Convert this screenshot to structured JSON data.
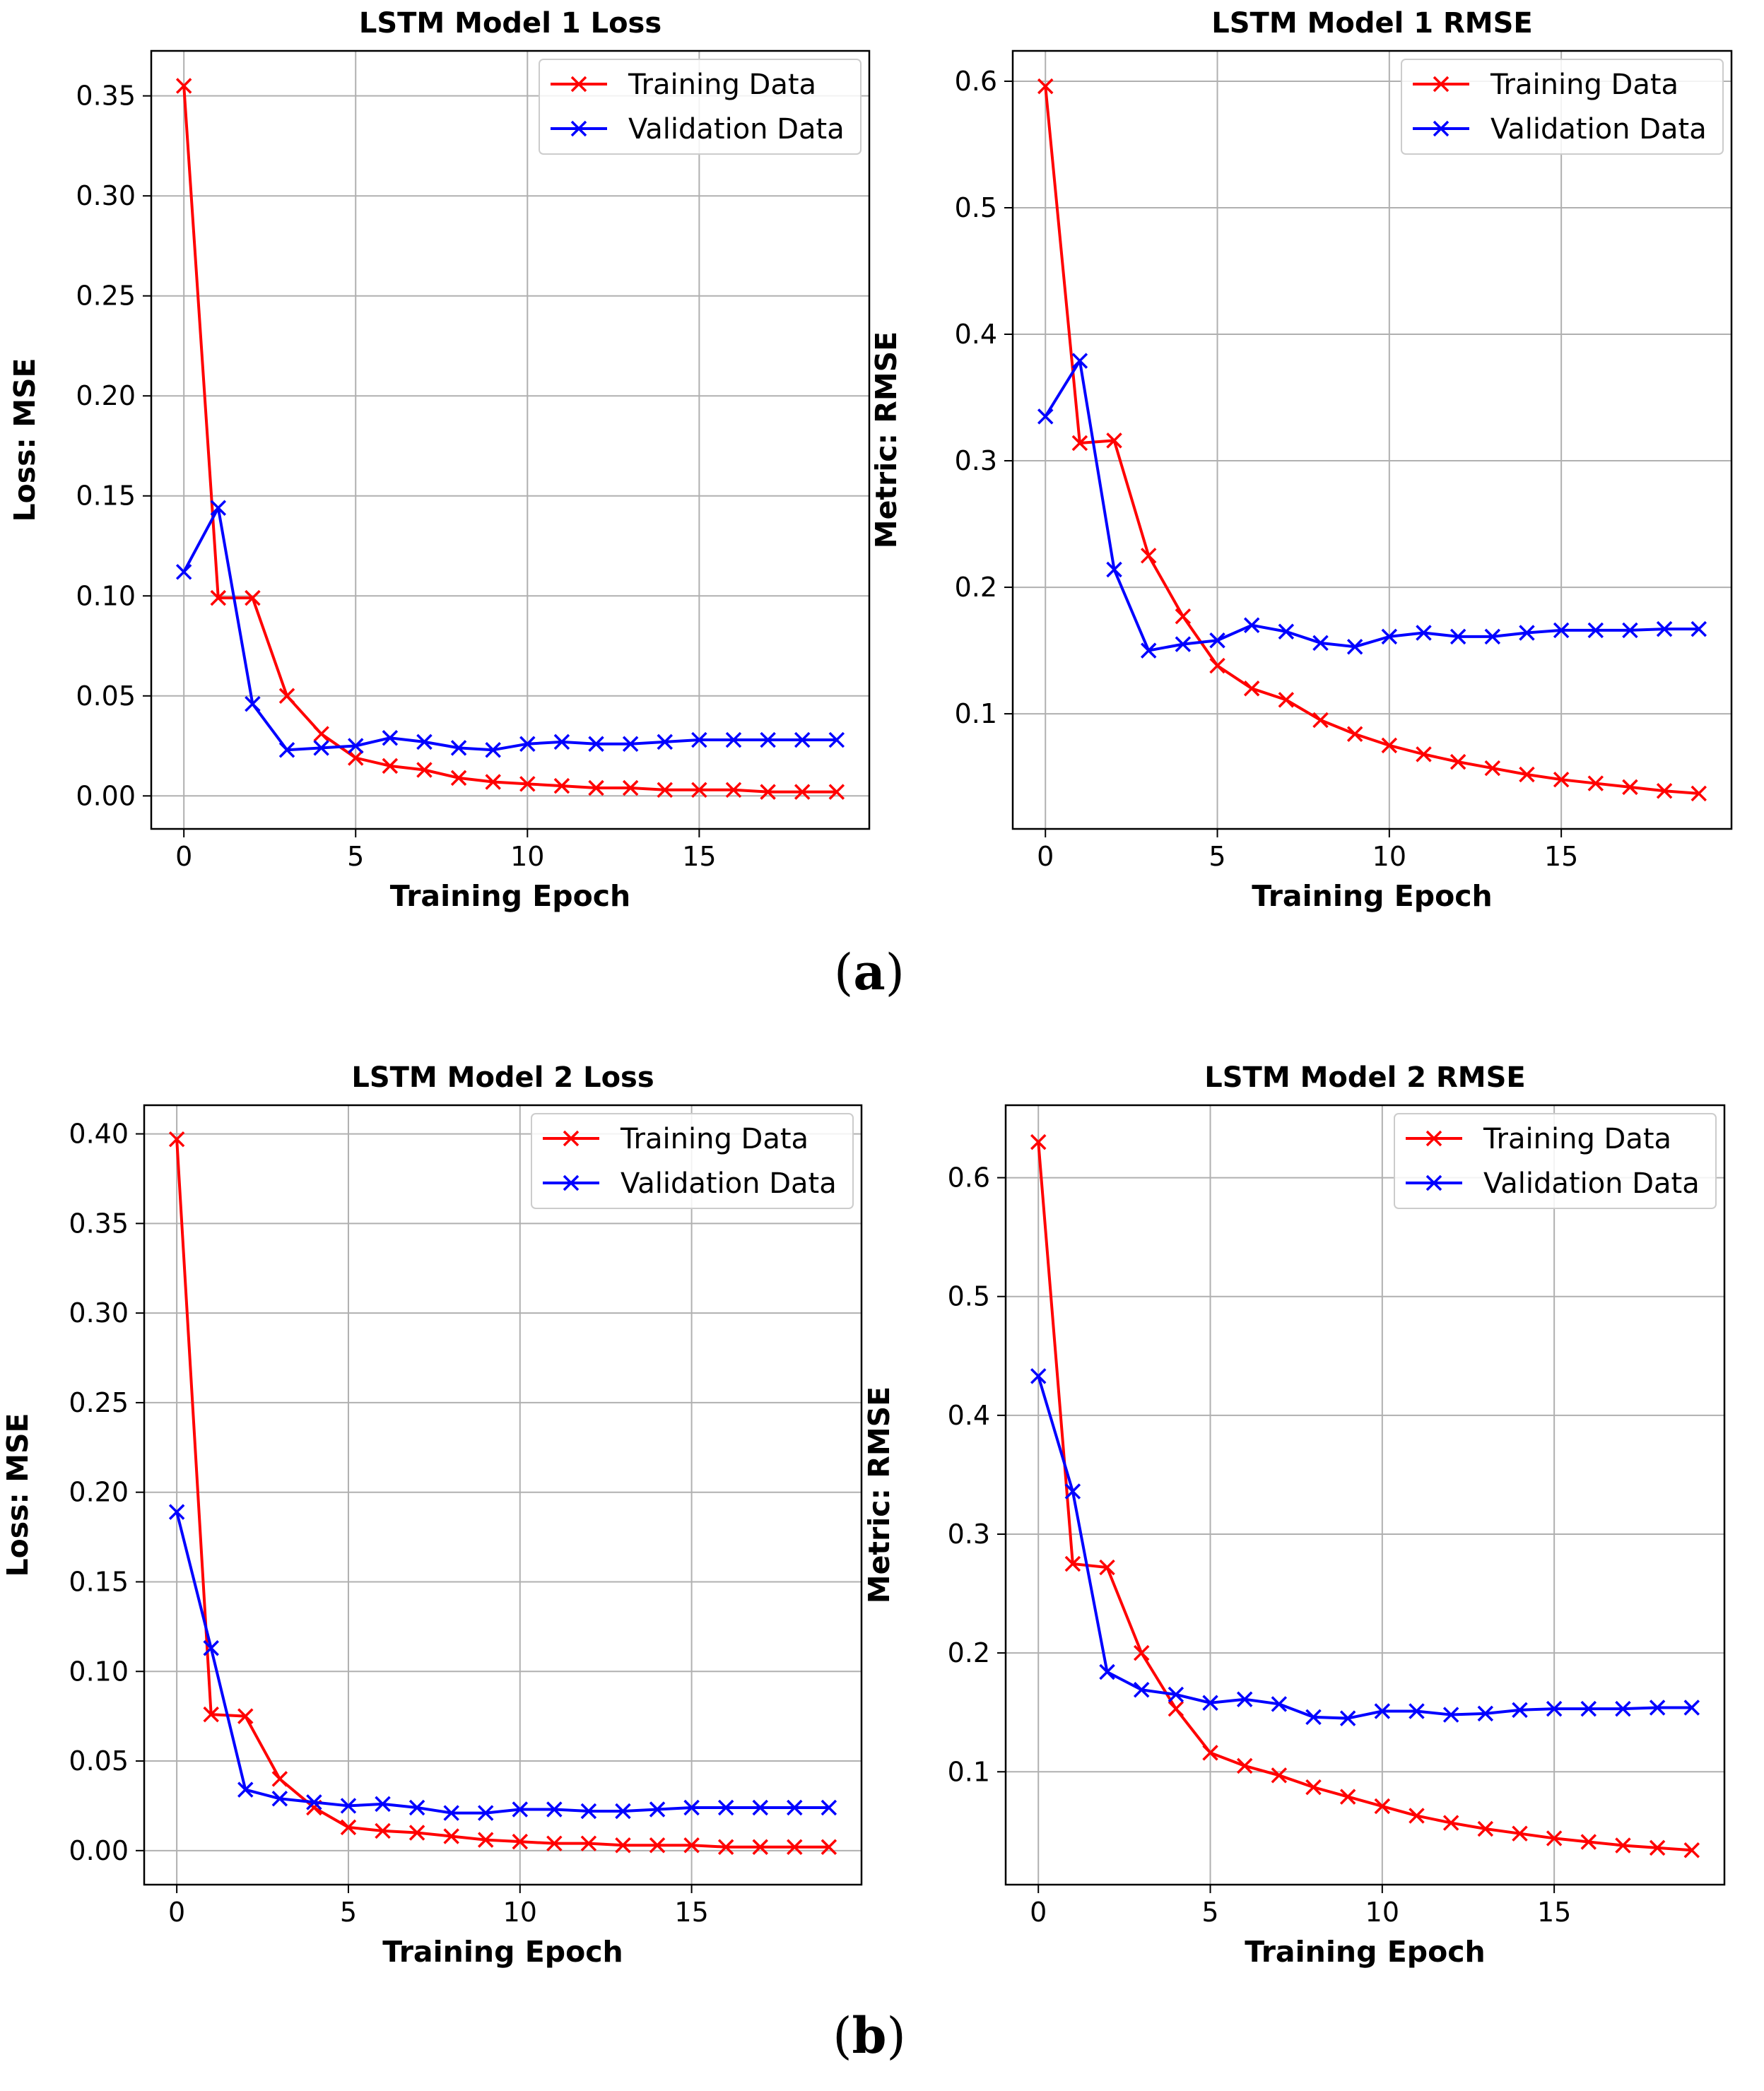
{
  "figure": {
    "row_labels": [
      {
        "open": "(",
        "letter": "a",
        "close": ")"
      },
      {
        "open": "(",
        "letter": "b",
        "close": ")"
      }
    ]
  },
  "legend": {
    "training": "Training Data",
    "validation": "Validation Data"
  },
  "colors": {
    "training": "#ff0000",
    "validation": "#0000ff",
    "grid": "#b0b0b0",
    "axis": "#000000"
  },
  "chart_data": [
    {
      "type": "line",
      "title": "LSTM Model 1 Loss",
      "xlabel": "Training Epoch",
      "ylabel": "Loss: MSE",
      "xlim": [
        -0.95,
        19.95
      ],
      "ylim": [
        -0.0165,
        0.3725
      ],
      "xticks": [
        0,
        5,
        10,
        15
      ],
      "yticks": [
        0.0,
        0.05,
        0.1,
        0.15,
        0.2,
        0.25,
        0.3,
        0.35
      ],
      "ytick_labels": [
        "0.00",
        "0.05",
        "0.10",
        "0.15",
        "0.20",
        "0.25",
        "0.30",
        "0.35"
      ],
      "grid": true,
      "legend_position": "upper right",
      "x": [
        0,
        1,
        2,
        3,
        4,
        5,
        6,
        7,
        8,
        9,
        10,
        11,
        12,
        13,
        14,
        15,
        16,
        17,
        18,
        19
      ],
      "series": [
        {
          "name": "Training Data",
          "color": "#ff0000",
          "values": [
            0.355,
            0.099,
            0.099,
            0.05,
            0.031,
            0.019,
            0.015,
            0.013,
            0.009,
            0.007,
            0.006,
            0.005,
            0.004,
            0.004,
            0.003,
            0.003,
            0.003,
            0.002,
            0.002,
            0.002
          ]
        },
        {
          "name": "Validation Data",
          "color": "#0000ff",
          "values": [
            0.112,
            0.144,
            0.046,
            0.023,
            0.024,
            0.025,
            0.029,
            0.027,
            0.024,
            0.023,
            0.026,
            0.027,
            0.026,
            0.026,
            0.027,
            0.028,
            0.028,
            0.028,
            0.028,
            0.028
          ]
        }
      ]
    },
    {
      "type": "line",
      "title": "LSTM Model 1 RMSE",
      "xlabel": "Training Epoch",
      "ylabel": "Metric: RMSE",
      "xlim": [
        -0.95,
        19.95
      ],
      "ylim": [
        0.009,
        0.624
      ],
      "xticks": [
        0,
        5,
        10,
        15
      ],
      "yticks": [
        0.1,
        0.2,
        0.3,
        0.4,
        0.5,
        0.6
      ],
      "ytick_labels": [
        "0.1",
        "0.2",
        "0.3",
        "0.4",
        "0.5",
        "0.6"
      ],
      "grid": true,
      "legend_position": "upper right",
      "x": [
        0,
        1,
        2,
        3,
        4,
        5,
        6,
        7,
        8,
        9,
        10,
        11,
        12,
        13,
        14,
        15,
        16,
        17,
        18,
        19
      ],
      "series": [
        {
          "name": "Training Data",
          "color": "#ff0000",
          "values": [
            0.596,
            0.314,
            0.316,
            0.225,
            0.177,
            0.138,
            0.12,
            0.111,
            0.095,
            0.084,
            0.075,
            0.068,
            0.062,
            0.057,
            0.052,
            0.048,
            0.045,
            0.042,
            0.039,
            0.037
          ]
        },
        {
          "name": "Validation Data",
          "color": "#0000ff",
          "values": [
            0.335,
            0.379,
            0.214,
            0.15,
            0.155,
            0.158,
            0.17,
            0.165,
            0.156,
            0.153,
            0.161,
            0.164,
            0.161,
            0.161,
            0.164,
            0.166,
            0.166,
            0.166,
            0.167,
            0.167
          ]
        }
      ]
    },
    {
      "type": "line",
      "title": "LSTM Model 2 Loss",
      "xlabel": "Training Epoch",
      "ylabel": "Loss: MSE",
      "xlim": [
        -0.95,
        19.95
      ],
      "ylim": [
        -0.019,
        0.416
      ],
      "xticks": [
        0,
        5,
        10,
        15
      ],
      "yticks": [
        0.0,
        0.05,
        0.1,
        0.15,
        0.2,
        0.25,
        0.3,
        0.35,
        0.4
      ],
      "ytick_labels": [
        "0.00",
        "0.05",
        "0.10",
        "0.15",
        "0.20",
        "0.25",
        "0.30",
        "0.35",
        "0.40"
      ],
      "grid": true,
      "legend_position": "upper right",
      "x": [
        0,
        1,
        2,
        3,
        4,
        5,
        6,
        7,
        8,
        9,
        10,
        11,
        12,
        13,
        14,
        15,
        16,
        17,
        18,
        19
      ],
      "series": [
        {
          "name": "Training Data",
          "color": "#ff0000",
          "values": [
            0.397,
            0.076,
            0.075,
            0.04,
            0.024,
            0.013,
            0.011,
            0.01,
            0.008,
            0.006,
            0.005,
            0.004,
            0.004,
            0.003,
            0.003,
            0.003,
            0.002,
            0.002,
            0.002,
            0.002
          ]
        },
        {
          "name": "Validation Data",
          "color": "#0000ff",
          "values": [
            0.189,
            0.113,
            0.034,
            0.029,
            0.027,
            0.025,
            0.026,
            0.024,
            0.021,
            0.021,
            0.023,
            0.023,
            0.022,
            0.022,
            0.023,
            0.024,
            0.024,
            0.024,
            0.024,
            0.024
          ]
        }
      ]
    },
    {
      "type": "line",
      "title": "LSTM Model 2 RMSE",
      "xlabel": "Training Epoch",
      "ylabel": "Metric: RMSE",
      "xlim": [
        -0.95,
        19.95
      ],
      "ylim": [
        0.005,
        0.661
      ],
      "xticks": [
        0,
        5,
        10,
        15
      ],
      "yticks": [
        0.1,
        0.2,
        0.3,
        0.4,
        0.5,
        0.6
      ],
      "ytick_labels": [
        "0.1",
        "0.2",
        "0.3",
        "0.4",
        "0.5",
        "0.6"
      ],
      "grid": true,
      "legend_position": "upper right",
      "x": [
        0,
        1,
        2,
        3,
        4,
        5,
        6,
        7,
        8,
        9,
        10,
        11,
        12,
        13,
        14,
        15,
        16,
        17,
        18,
        19
      ],
      "series": [
        {
          "name": "Training Data",
          "color": "#ff0000",
          "values": [
            0.63,
            0.275,
            0.272,
            0.2,
            0.153,
            0.116,
            0.105,
            0.097,
            0.087,
            0.079,
            0.071,
            0.063,
            0.057,
            0.052,
            0.048,
            0.044,
            0.041,
            0.038,
            0.036,
            0.034
          ]
        },
        {
          "name": "Validation Data",
          "color": "#0000ff",
          "values": [
            0.433,
            0.336,
            0.184,
            0.169,
            0.165,
            0.158,
            0.161,
            0.157,
            0.146,
            0.145,
            0.151,
            0.151,
            0.148,
            0.149,
            0.152,
            0.153,
            0.153,
            0.153,
            0.154,
            0.154
          ]
        }
      ]
    }
  ]
}
